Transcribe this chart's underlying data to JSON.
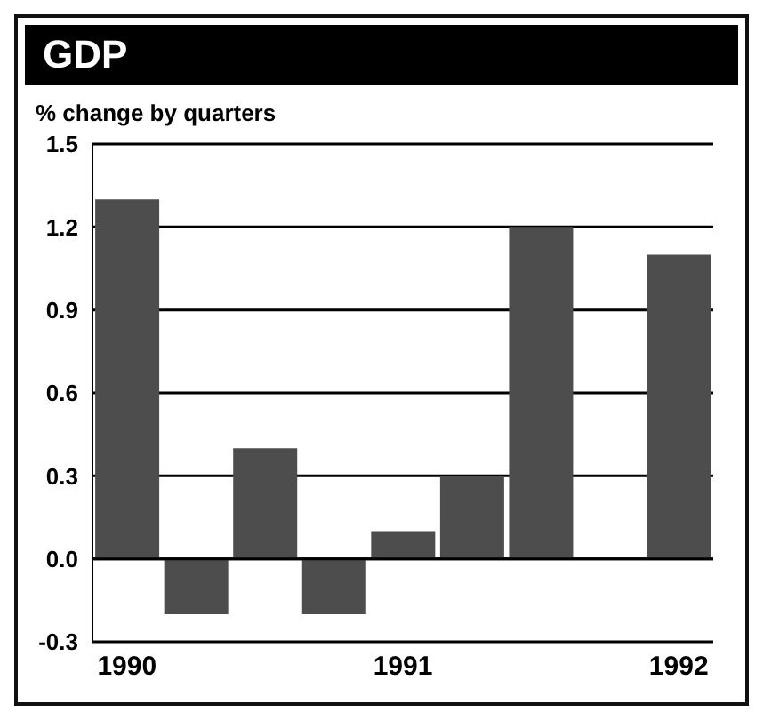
{
  "chart_data": {
    "type": "bar",
    "title": "GDP",
    "subtitle": "% change by quarters",
    "categories": [
      "1990",
      null,
      null,
      null,
      "1991",
      null,
      null,
      null,
      "1992"
    ],
    "values": [
      1.3,
      -0.2,
      0.4,
      -0.2,
      0.1,
      0.3,
      1.2,
      null,
      1.1
    ],
    "color": "#4d4d4d",
    "ylim": [
      -0.3,
      1.5
    ],
    "yticks": [
      {
        "value": -0.3,
        "label": "-0.3"
      },
      {
        "value": 0,
        "label": "0.0"
      },
      {
        "value": 0.3,
        "label": "0.3"
      },
      {
        "value": 0.6,
        "label": "0.6"
      },
      {
        "value": 0.9,
        "label": "0.9"
      },
      {
        "value": 1.2,
        "label": "1.2"
      },
      {
        "value": 1.5,
        "label": "1.5"
      }
    ],
    "grid": "y"
  }
}
